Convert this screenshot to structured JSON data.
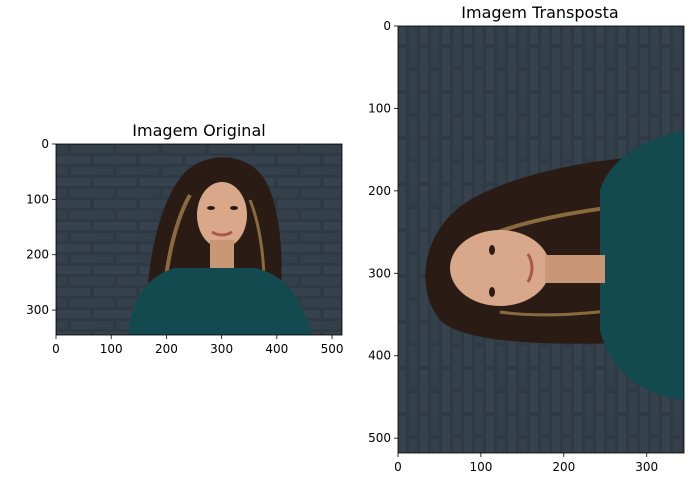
{
  "chart_data": [
    {
      "type": "image",
      "title": "Imagem Original",
      "xlabel": "",
      "ylabel": "",
      "xlim": [
        0,
        518
      ],
      "ylim": [
        345,
        0
      ],
      "x_ticks": [
        0,
        100,
        200,
        300,
        400,
        500
      ],
      "y_ticks": [
        0,
        100,
        200,
        300
      ],
      "grid": false,
      "image_content": "woman with long dark hair, teal top, dark painted brick wall background"
    },
    {
      "type": "image",
      "title": "Imagem Transposta",
      "xlabel": "",
      "ylabel": "",
      "xlim": [
        0,
        345
      ],
      "ylim": [
        518,
        0
      ],
      "x_ticks": [
        0,
        100,
        200,
        300
      ],
      "y_ticks": [
        0,
        100,
        200,
        300,
        400,
        500
      ],
      "grid": false,
      "image_content": "transposed portrait: woman rotated, brick wall background"
    }
  ],
  "colors": {
    "wall": "#2f3a44",
    "brick_line": "#1c242b",
    "hair": "#2a1c14",
    "hair_highlight": "#8a6a3e",
    "skin": "#d9a88a",
    "top": "#134a4f",
    "axis": "#000000"
  }
}
